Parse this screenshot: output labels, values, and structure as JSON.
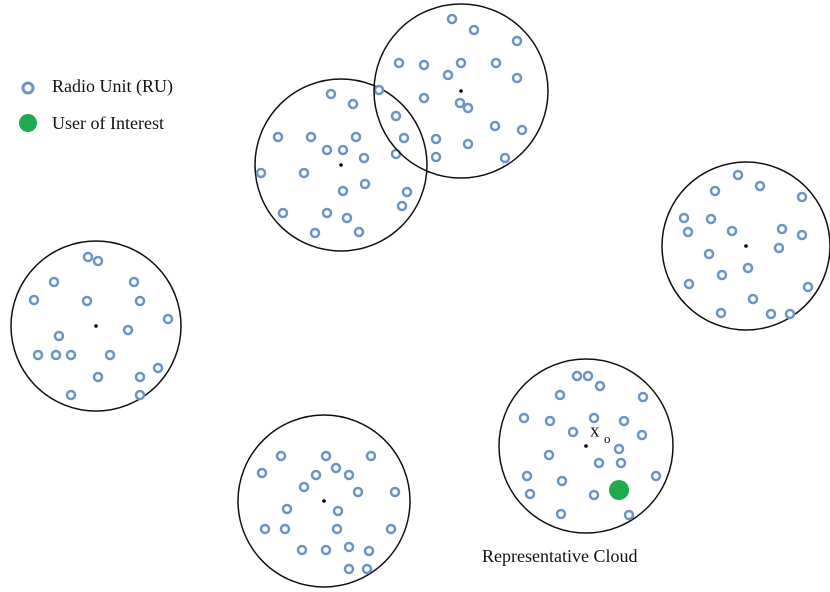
{
  "legend": [
    {
      "label": "Radio Unit (RU)"
    },
    {
      "label": "User of Interest"
    }
  ],
  "annotations": {
    "point_label": "x",
    "point_subscript": "o",
    "cloud_caption": "Representative Cloud"
  }
}
